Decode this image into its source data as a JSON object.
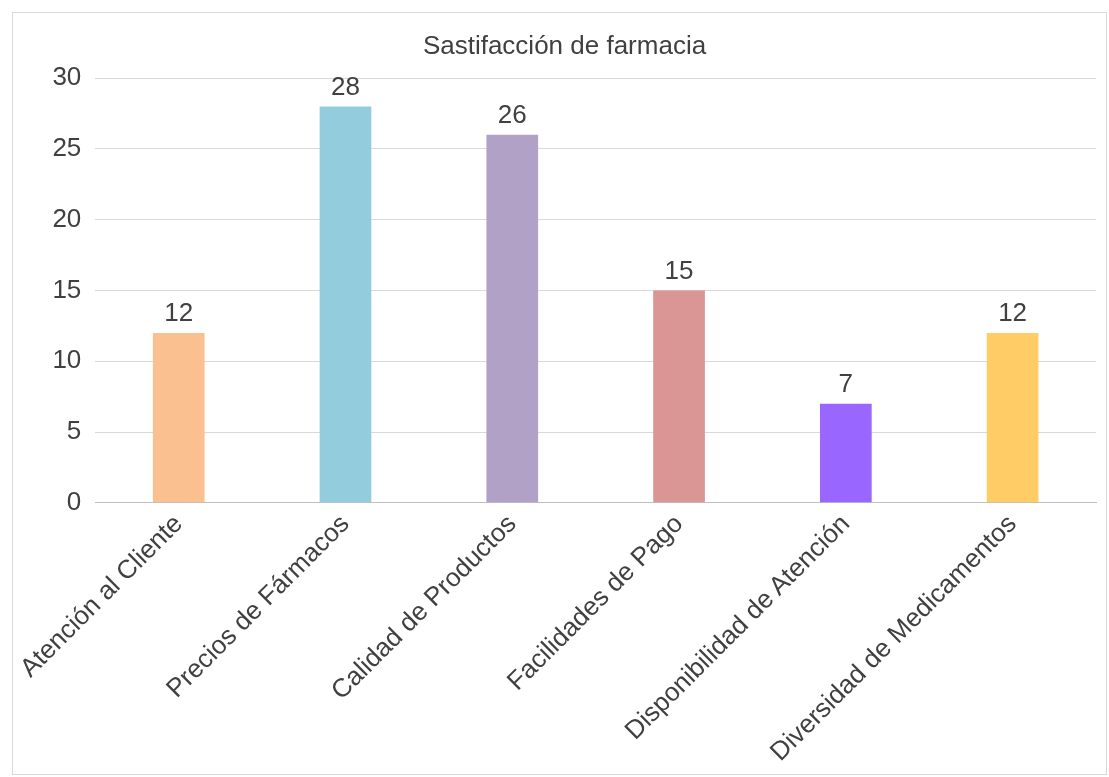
{
  "chart_data": {
    "type": "bar",
    "title": "Sastifacción de farmacia",
    "categories": [
      "Atención al Cliente",
      "Precios de Fármacos",
      "Calidad de Productos",
      "Facilidades de Pago",
      "Disponibilidad de Atención",
      "Diversidad de Medicamentos"
    ],
    "values": [
      12,
      28,
      26,
      15,
      7,
      12
    ],
    "colors": [
      "#fac090",
      "#93cddd",
      "#b2a1c7",
      "#d99694",
      "#9966ff",
      "#ffcc66"
    ],
    "ylim": [
      0,
      30
    ],
    "yticks": [
      0,
      5,
      10,
      15,
      20,
      25,
      30
    ],
    "grid": "y",
    "legend": false,
    "data_labels": true
  }
}
